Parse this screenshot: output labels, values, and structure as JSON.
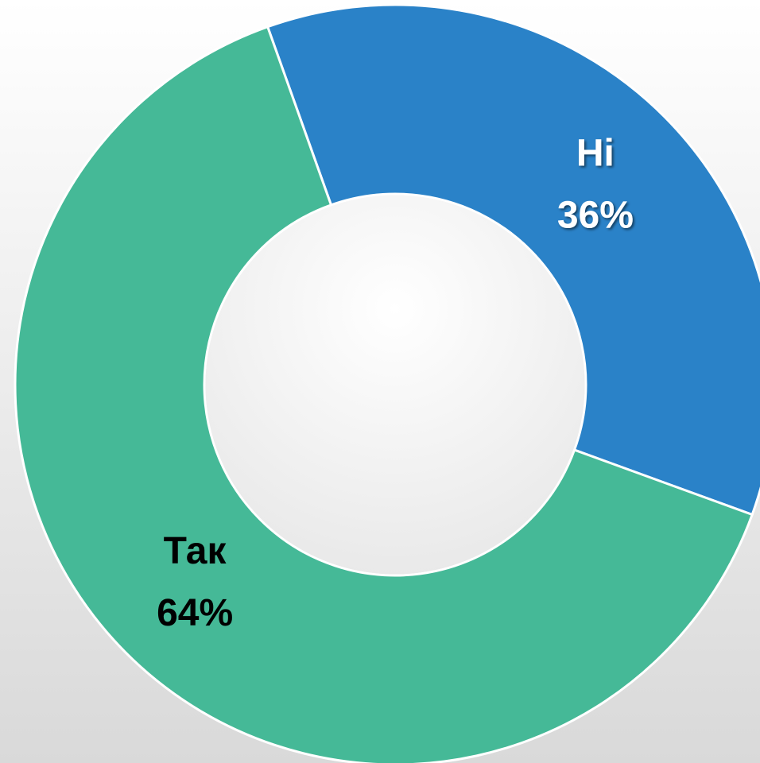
{
  "chart_data": {
    "type": "donut",
    "categories": [
      "Ні",
      "Так"
    ],
    "values": [
      36,
      64
    ],
    "value_labels": [
      "36%",
      "64%"
    ],
    "colors": [
      "#2a82c8",
      "#45b997"
    ],
    "label_colors": [
      "#ffffff",
      "#000000"
    ]
  }
}
